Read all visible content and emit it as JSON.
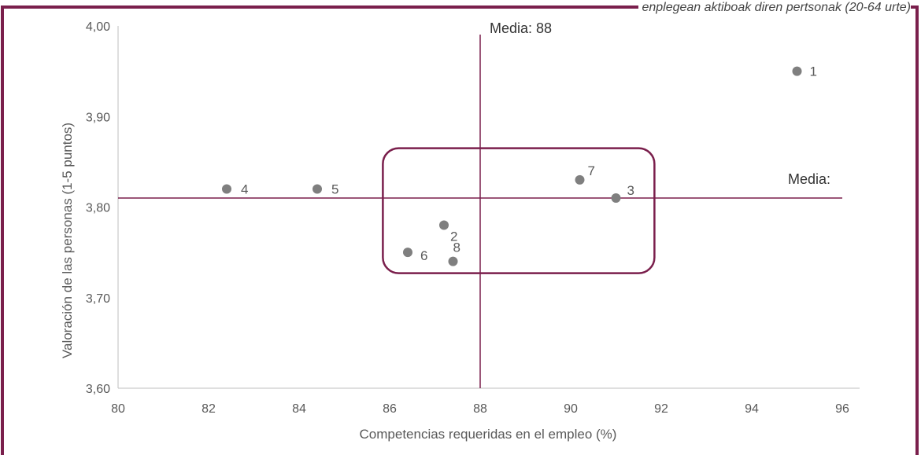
{
  "header": {
    "caption": "enplegean aktiboak diren pertsonak (20-64 urte)"
  },
  "colors": {
    "accent": "#7a1f4c",
    "point": "#7f7f7f",
    "axis": "#bfbfbf",
    "text": "#595959"
  },
  "chart_data": {
    "type": "scatter",
    "xlabel": "Competencias requeridas en el empleo (%)",
    "ylabel": "Valoración de las personas (1-5 puntos)",
    "xlim": [
      80,
      96
    ],
    "ylim": [
      3.6,
      4.0
    ],
    "x_ticks": [
      "80",
      "82",
      "84",
      "86",
      "88",
      "90",
      "92",
      "94",
      "96"
    ],
    "y_ticks": [
      "3,60",
      "3,70",
      "3,80",
      "3,90",
      "4,00"
    ],
    "grid": false,
    "points": [
      {
        "label": "1",
        "x": 95.0,
        "y": 3.95
      },
      {
        "label": "2",
        "x": 87.2,
        "y": 3.78
      },
      {
        "label": "3",
        "x": 91.0,
        "y": 3.81
      },
      {
        "label": "4",
        "x": 82.4,
        "y": 3.82
      },
      {
        "label": "5",
        "x": 84.4,
        "y": 3.82
      },
      {
        "label": "6",
        "x": 86.4,
        "y": 3.75
      },
      {
        "label": "7",
        "x": 90.2,
        "y": 3.83
      },
      {
        "label": "8",
        "x": 87.4,
        "y": 3.74
      }
    ],
    "mean_x": {
      "value": 88,
      "label": "Media: 88"
    },
    "mean_y": {
      "value": 3.81,
      "label": "Media:"
    },
    "highlight_box": {
      "x": [
        85.85,
        91.85
      ],
      "y": [
        3.727,
        3.865
      ]
    }
  }
}
